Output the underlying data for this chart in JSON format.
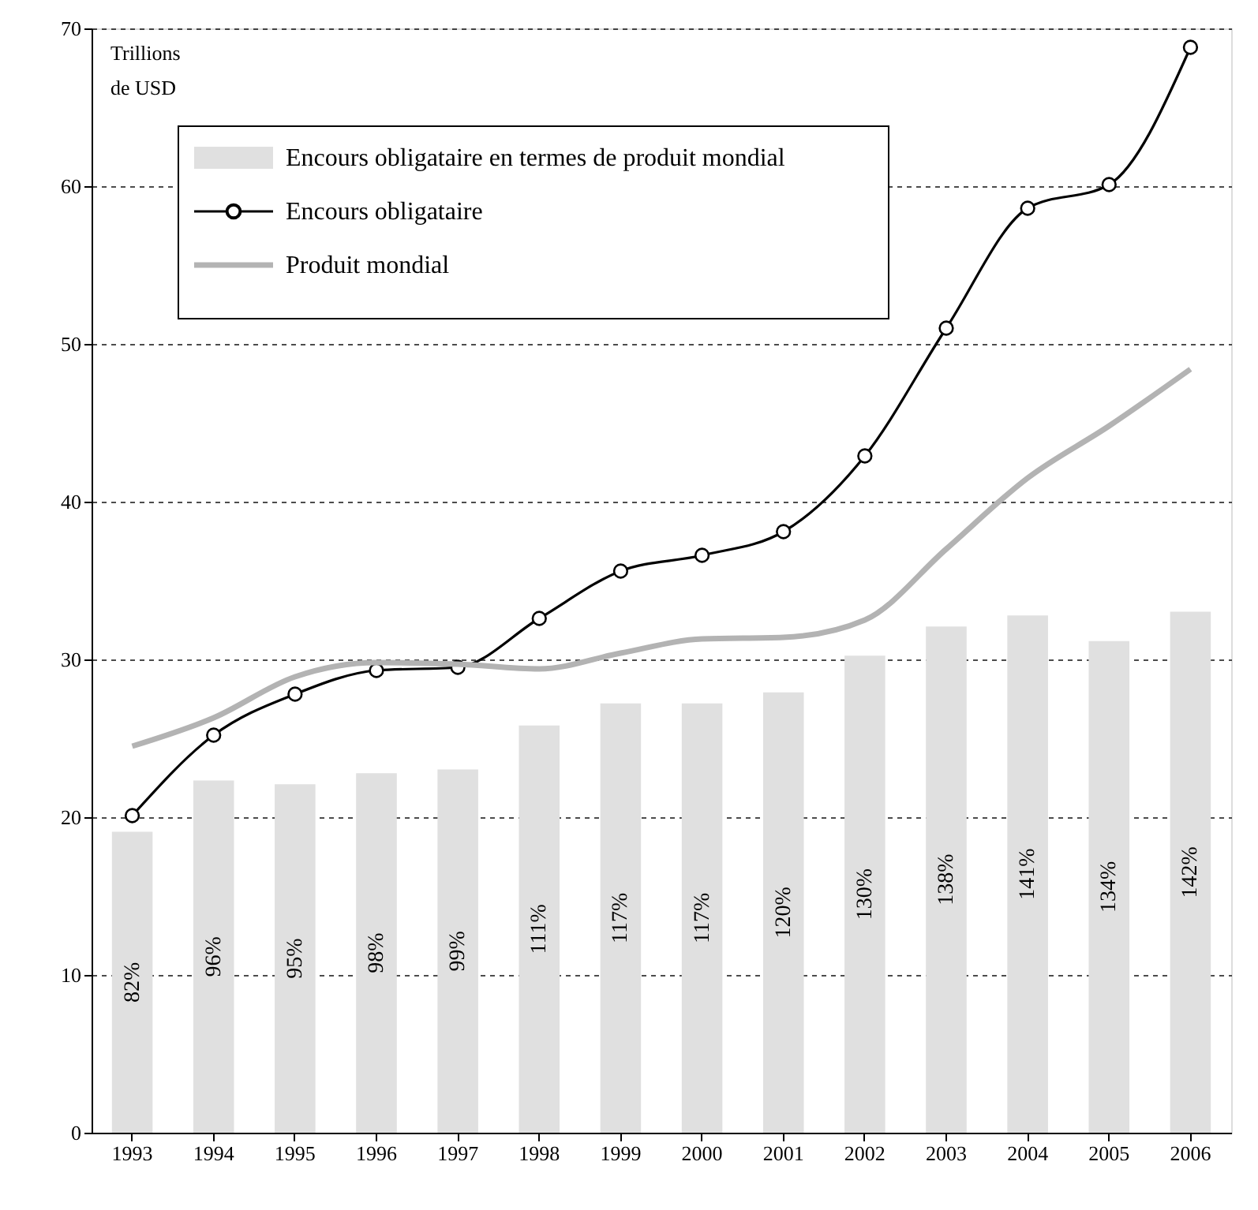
{
  "chart_data": {
    "type": "bar",
    "ylabel": "Trillions\nde USD",
    "categories": [
      "1993",
      "1994",
      "1995",
      "1996",
      "1997",
      "1998",
      "1999",
      "2000",
      "2001",
      "2002",
      "2003",
      "2004",
      "2005",
      "2006"
    ],
    "series": [
      {
        "name": "Encours obligataire en termes de produit mondial",
        "axis": "y2",
        "color": "#e0e0e0",
        "values": [
          82,
          96,
          95,
          98,
          99,
          111,
          117,
          117,
          120,
          130,
          138,
          141,
          134,
          142
        ],
        "value_labels": [
          "82%",
          "96%",
          "95%",
          "98%",
          "99%",
          "111%",
          "117%",
          "117%",
          "120%",
          "130%",
          "138%",
          "141%",
          "134%",
          "142%"
        ]
      },
      {
        "name": "Encours obligataire",
        "type": "line",
        "color": "#000000",
        "marker": "circle",
        "values": [
          20.1,
          25.2,
          27.8,
          29.3,
          29.5,
          32.6,
          35.6,
          36.6,
          38.1,
          42.9,
          51.0,
          58.6,
          60.1,
          68.8
        ]
      },
      {
        "name": "Produit mondial",
        "type": "line",
        "color": "#b3b3b3",
        "values": [
          24.5,
          26.3,
          28.9,
          29.8,
          29.7,
          29.4,
          30.4,
          31.3,
          31.4,
          32.5,
          37.0,
          41.5,
          44.8,
          48.4
        ]
      }
    ],
    "ylim": [
      0,
      70
    ],
    "y2lim": [
      0,
      301
    ],
    "yticks": [
      0,
      10,
      20,
      30,
      40,
      50,
      60,
      70
    ],
    "grid": "y",
    "legend": "top left"
  }
}
